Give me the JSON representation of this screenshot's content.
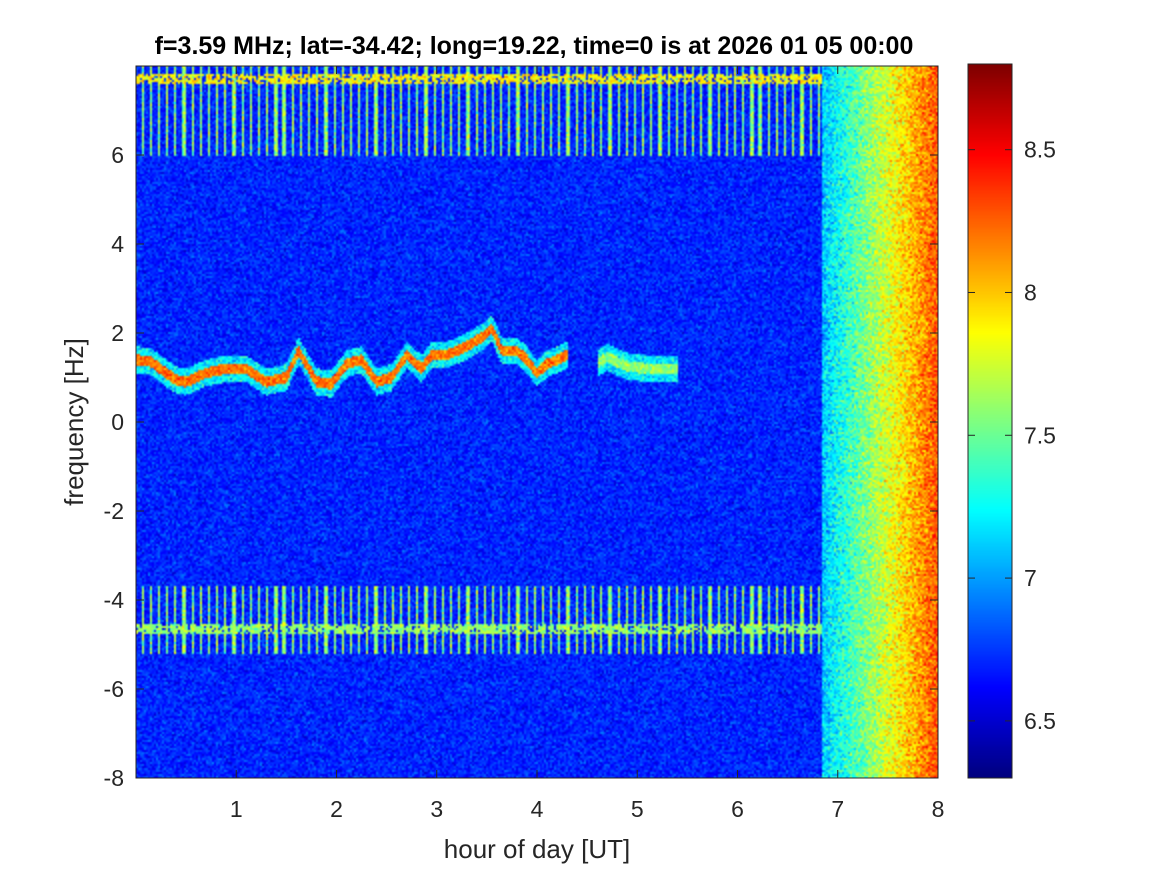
{
  "chart_data": {
    "type": "heatmap",
    "title": "f=3.59 MHz;  lat=-34.42; long=19.22, time=0 is at 2026 01 05 00:00",
    "xlabel": "hour of day [UT]",
    "ylabel": "frequency [Hz]",
    "xlim": [
      0,
      8
    ],
    "ylim": [
      -8,
      8
    ],
    "xticks": [
      "1",
      "2",
      "3",
      "4",
      "5",
      "6",
      "7",
      "8"
    ],
    "yticks": [
      "-8",
      "-6",
      "-4",
      "-2",
      "0",
      "2",
      "4",
      "6"
    ],
    "colorbar": {
      "limits": [
        6.3,
        8.8
      ],
      "ticks": [
        "6.5",
        "7",
        "7.5",
        "8",
        "8.5"
      ],
      "colormap": "jet"
    },
    "background_level": 6.7,
    "features": [
      {
        "kind": "doppler_trace",
        "level": 8.2,
        "points": [
          [
            0.0,
            1.4
          ],
          [
            0.15,
            1.35
          ],
          [
            0.3,
            1.1
          ],
          [
            0.4,
            0.95
          ],
          [
            0.5,
            0.9
          ],
          [
            0.7,
            1.1
          ],
          [
            0.9,
            1.2
          ],
          [
            1.1,
            1.2
          ],
          [
            1.3,
            0.9
          ],
          [
            1.5,
            1.0
          ],
          [
            1.62,
            1.6
          ],
          [
            1.7,
            1.3
          ],
          [
            1.8,
            0.9
          ],
          [
            1.95,
            0.85
          ],
          [
            2.1,
            1.3
          ],
          [
            2.25,
            1.4
          ],
          [
            2.4,
            0.9
          ],
          [
            2.55,
            1.0
          ],
          [
            2.7,
            1.5
          ],
          [
            2.85,
            1.2
          ],
          [
            2.95,
            1.5
          ],
          [
            3.1,
            1.5
          ],
          [
            3.3,
            1.7
          ],
          [
            3.45,
            1.9
          ],
          [
            3.55,
            2.1
          ],
          [
            3.65,
            1.6
          ],
          [
            3.8,
            1.6
          ],
          [
            3.9,
            1.4
          ],
          [
            4.0,
            1.1
          ],
          [
            4.1,
            1.3
          ],
          [
            4.2,
            1.4
          ],
          [
            4.3,
            1.5
          ]
        ]
      },
      {
        "kind": "doppler_trace",
        "level": 7.6,
        "points": [
          [
            4.6,
            1.3
          ],
          [
            4.7,
            1.45
          ],
          [
            4.9,
            1.25
          ],
          [
            5.1,
            1.2
          ],
          [
            5.4,
            1.2
          ]
        ]
      },
      {
        "kind": "horizontal_band",
        "level": 7.6,
        "freq": -4.65,
        "x_range": [
          0.0,
          6.85
        ]
      },
      {
        "kind": "horizontal_band",
        "level": 7.9,
        "freq": 7.7,
        "x_range": [
          0.0,
          6.85
        ]
      },
      {
        "kind": "interference_stripes",
        "level": 7.6,
        "x_range": [
          0.05,
          6.85
        ],
        "freq_ranges": [
          [
            6.0,
            8.0
          ],
          [
            -5.2,
            -3.7
          ]
        ],
        "interval_hours": 0.0833
      },
      {
        "kind": "noise_ramp",
        "x_range": [
          6.85,
          8.0
        ],
        "levels": [
          7.1,
          8.3
        ]
      }
    ]
  }
}
